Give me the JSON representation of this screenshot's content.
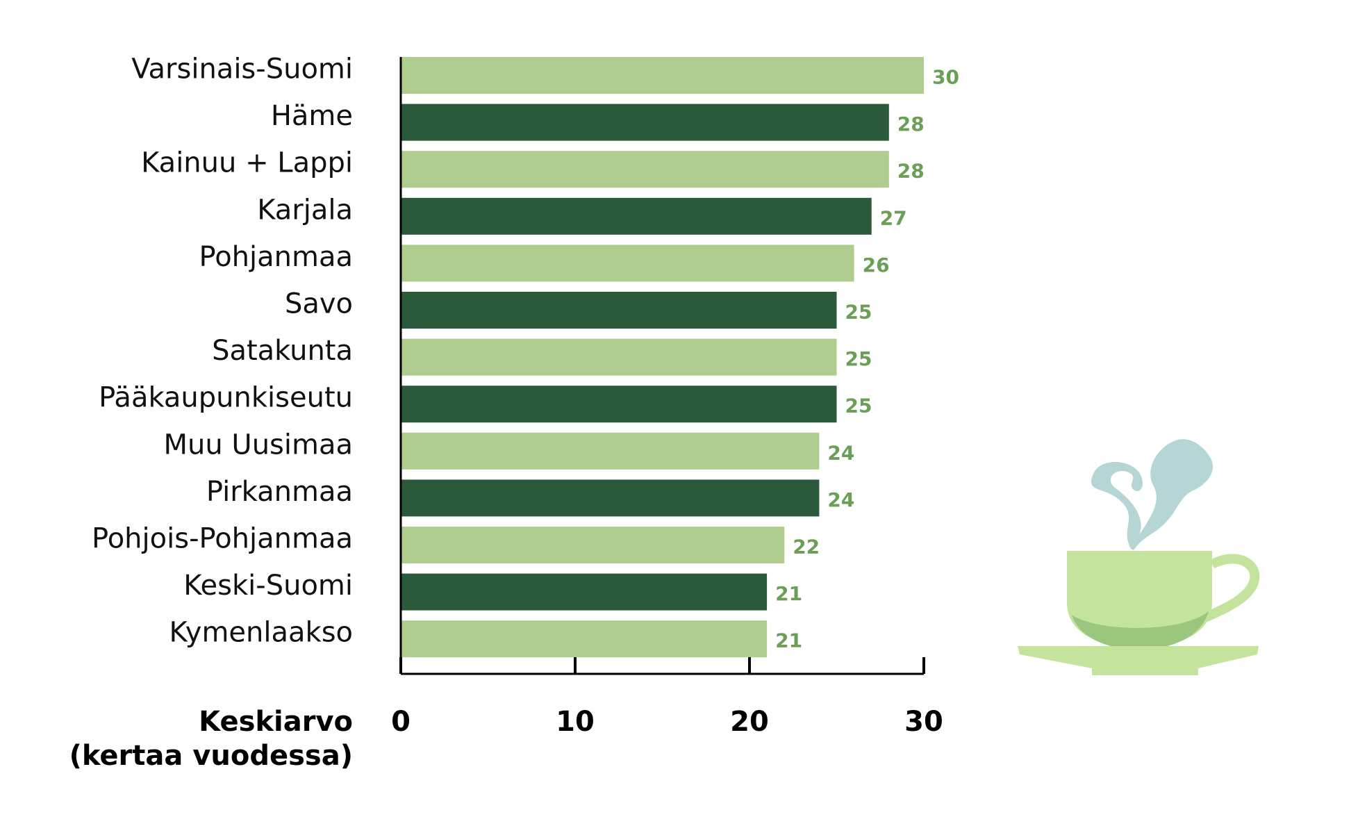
{
  "chart_data": {
    "type": "bar",
    "orientation": "horizontal",
    "categories": [
      "Varsinais-Suomi",
      "Häme",
      "Kainuu + Lappi",
      "Karjala",
      "Pohjanmaa",
      "Savo",
      "Satakunta",
      "Pääkaupunkiseutu",
      "Muu Uusimaa",
      "Pirkanmaa",
      "Pohjois-Pohjanmaa",
      "Keski-Suomi",
      "Kymenlaakso"
    ],
    "values": [
      30,
      28,
      28,
      27,
      26,
      25,
      25,
      25,
      24,
      24,
      22,
      21,
      21
    ],
    "value_labels": [
      "30",
      "28",
      "28",
      "27",
      "26",
      "25",
      "25",
      "25",
      "24",
      "24",
      "22",
      "21",
      "21"
    ],
    "xlabel_lines": [
      "Keskiarvo",
      "(kertaa vuodessa)"
    ],
    "xlim": [
      0,
      30
    ],
    "xticks": [
      0,
      10,
      20,
      30
    ],
    "xtick_labels": [
      "0",
      "10",
      "20",
      "30"
    ],
    "grid": false,
    "legend": "none"
  },
  "colors": {
    "bar_light": "#aecd8f",
    "bar_dark": "#2b5a3a",
    "value_label": "#6a9f55",
    "axis": "#000000",
    "cup": "#c4e39c",
    "cup_shadow": "#9bc67e",
    "steam": "#b6d6d6"
  },
  "illustration": {
    "icon": "coffee-cup-icon"
  }
}
